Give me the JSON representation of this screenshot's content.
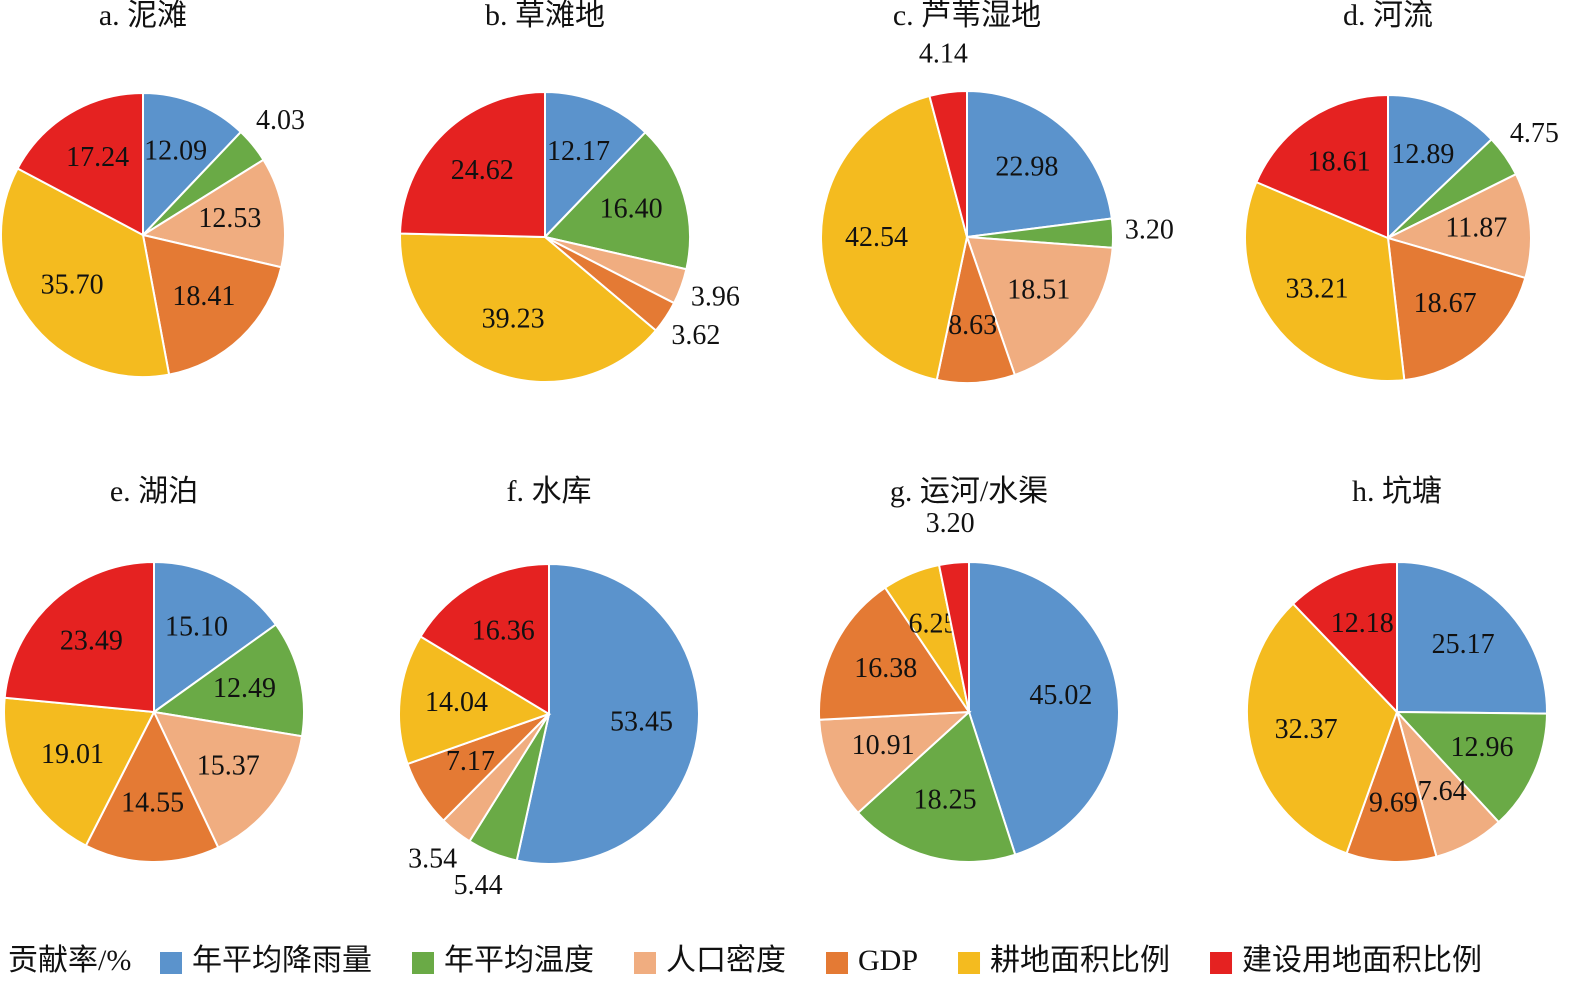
{
  "chart_data": [
    {
      "type": "pie",
      "title": "a. 泥滩",
      "values": [
        12.09,
        4.03,
        12.53,
        18.41,
        35.7,
        17.24
      ],
      "value_labels": [
        "12.09",
        "4.03",
        "12.53",
        "18.41",
        "35.70",
        "17.24"
      ]
    },
    {
      "type": "pie",
      "title": "b. 草滩地",
      "values": [
        12.17,
        16.4,
        3.96,
        3.62,
        39.23,
        24.62
      ],
      "value_labels": [
        "12.17",
        "16.40",
        "3.96",
        "3.62",
        "39.23",
        "24.62"
      ]
    },
    {
      "type": "pie",
      "title": "c. 芦苇湿地",
      "values": [
        22.98,
        3.2,
        18.51,
        8.63,
        42.54,
        4.14
      ],
      "value_labels": [
        "22.98",
        "3.20",
        "18.51",
        "8.63",
        "42.54",
        "4.14"
      ]
    },
    {
      "type": "pie",
      "title": "d. 河流",
      "values": [
        12.89,
        4.75,
        11.87,
        18.67,
        33.21,
        18.61
      ],
      "value_labels": [
        "12.89",
        "4.75",
        "11.87",
        "18.67",
        "33.21",
        "18.61"
      ]
    },
    {
      "type": "pie",
      "title": "e. 湖泊",
      "values": [
        15.1,
        12.49,
        15.37,
        14.55,
        19.01,
        23.49
      ],
      "value_labels": [
        "15.10",
        "12.49",
        "15.37",
        "14.55",
        "19.01",
        "23.49"
      ]
    },
    {
      "type": "pie",
      "title": "f. 水库",
      "values": [
        53.45,
        5.44,
        3.54,
        7.17,
        14.04,
        16.36
      ],
      "value_labels": [
        "53.45",
        "5.44",
        "3.54",
        "7.17",
        "14.04",
        "16.36"
      ]
    },
    {
      "type": "pie",
      "title": "g. 运河/水渠",
      "values": [
        45.02,
        18.25,
        10.91,
        16.38,
        6.25,
        3.2
      ],
      "value_labels": [
        "45.02",
        "18.25",
        "10.91",
        "16.38",
        "6.25",
        "3.20"
      ]
    },
    {
      "type": "pie",
      "title": "h. 坑塘",
      "values": [
        25.17,
        12.96,
        7.64,
        9.69,
        32.37,
        12.18
      ],
      "value_labels": [
        "25.17",
        "12.96",
        "7.64",
        "9.69",
        "32.37",
        "12.18"
      ]
    }
  ],
  "legend": {
    "title": "贡献率/%",
    "items": [
      {
        "name": "年平均降雨量",
        "color": "#5b93cc"
      },
      {
        "name": "年平均温度",
        "color": "#6aaa46"
      },
      {
        "name": "人口密度",
        "color": "#f0ad80"
      },
      {
        "name": "GDP",
        "color": "#e47a34"
      },
      {
        "name": "耕地面积比例",
        "color": "#f4bb1f"
      },
      {
        "name": "建设用地面积比例",
        "color": "#e52221"
      }
    ]
  }
}
